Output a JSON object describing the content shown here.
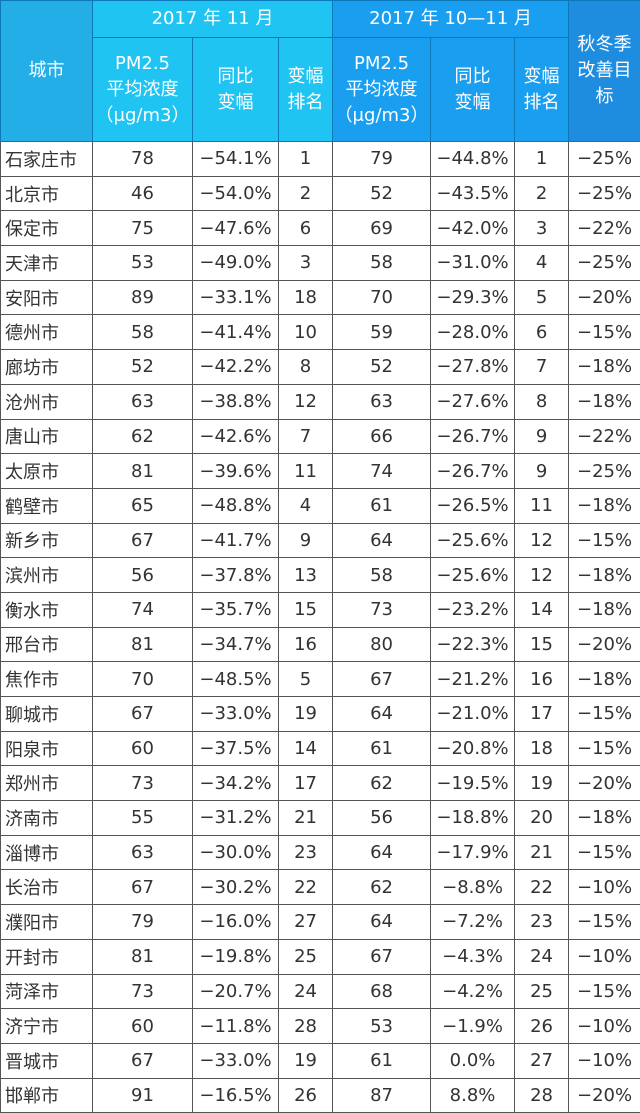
{
  "header": {
    "city": "城市",
    "group_nov": "2017 年 11 月",
    "group_octnov": "2017 年 10—11 月",
    "target": "秋冬季改善目标",
    "pm_line1": "PM2.5",
    "pm_line2": "平均浓度",
    "pm_line3": "（μg/m3）",
    "yoy": "同比变幅",
    "rank": "变幅排名"
  },
  "colors": {
    "city_header": "#24aee8",
    "nov_header": "#20c4f2",
    "octnov_header": "#1a9ff0",
    "target_header": "#1e8de0"
  },
  "rows": [
    [
      "石家庄市",
      "78",
      "−54.1%",
      "1",
      "79",
      "−44.8%",
      "1",
      "−25%"
    ],
    [
      "北京市",
      "46",
      "−54.0%",
      "2",
      "52",
      "−43.5%",
      "2",
      "−25%"
    ],
    [
      "保定市",
      "75",
      "−47.6%",
      "6",
      "69",
      "−42.0%",
      "3",
      "−22%"
    ],
    [
      "天津市",
      "53",
      "−49.0%",
      "3",
      "58",
      "−31.0%",
      "4",
      "−25%"
    ],
    [
      "安阳市",
      "89",
      "−33.1%",
      "18",
      "70",
      "−29.3%",
      "5",
      "−20%"
    ],
    [
      "德州市",
      "58",
      "−41.4%",
      "10",
      "59",
      "−28.0%",
      "6",
      "−15%"
    ],
    [
      "廊坊市",
      "52",
      "−42.2%",
      "8",
      "52",
      "−27.8%",
      "7",
      "−18%"
    ],
    [
      "沧州市",
      "63",
      "−38.8%",
      "12",
      "63",
      "−27.6%",
      "8",
      "−18%"
    ],
    [
      "唐山市",
      "62",
      "−42.6%",
      "7",
      "66",
      "−26.7%",
      "9",
      "−22%"
    ],
    [
      "太原市",
      "81",
      "−39.6%",
      "11",
      "74",
      "−26.7%",
      "9",
      "−25%"
    ],
    [
      "鹤壁市",
      "65",
      "−48.8%",
      "4",
      "61",
      "−26.5%",
      "11",
      "−18%"
    ],
    [
      "新乡市",
      "67",
      "−41.7%",
      "9",
      "64",
      "−25.6%",
      "12",
      "−15%"
    ],
    [
      "滨州市",
      "56",
      "−37.8%",
      "13",
      "58",
      "−25.6%",
      "12",
      "−18%"
    ],
    [
      "衡水市",
      "74",
      "−35.7%",
      "15",
      "73",
      "−23.2%",
      "14",
      "−18%"
    ],
    [
      "邢台市",
      "81",
      "−34.7%",
      "16",
      "80",
      "−22.3%",
      "15",
      "−20%"
    ],
    [
      "焦作市",
      "70",
      "−48.5%",
      "5",
      "67",
      "−21.2%",
      "16",
      "−18%"
    ],
    [
      "聊城市",
      "67",
      "−33.0%",
      "19",
      "64",
      "−21.0%",
      "17",
      "−15%"
    ],
    [
      "阳泉市",
      "60",
      "−37.5%",
      "14",
      "61",
      "−20.8%",
      "18",
      "−15%"
    ],
    [
      "郑州市",
      "73",
      "−34.2%",
      "17",
      "62",
      "−19.5%",
      "19",
      "−20%"
    ],
    [
      "济南市",
      "55",
      "−31.2%",
      "21",
      "56",
      "−18.8%",
      "20",
      "−18%"
    ],
    [
      "淄博市",
      "63",
      "−30.0%",
      "23",
      "64",
      "−17.9%",
      "21",
      "−15%"
    ],
    [
      "长治市",
      "67",
      "−30.2%",
      "22",
      "62",
      "−8.8%",
      "22",
      "−10%"
    ],
    [
      "濮阳市",
      "79",
      "−16.0%",
      "27",
      "64",
      "−7.2%",
      "23",
      "−15%"
    ],
    [
      "开封市",
      "81",
      "−19.8%",
      "25",
      "67",
      "−4.3%",
      "24",
      "−10%"
    ],
    [
      "菏泽市",
      "73",
      "−20.7%",
      "24",
      "68",
      "−4.2%",
      "25",
      "−15%"
    ],
    [
      "济宁市",
      "60",
      "−11.8%",
      "28",
      "53",
      "−1.9%",
      "26",
      "−10%"
    ],
    [
      "晋城市",
      "67",
      "−33.0%",
      "19",
      "61",
      "0.0%",
      "27",
      "−10%"
    ],
    [
      "邯郸市",
      "91",
      "−16.5%",
      "26",
      "87",
      "8.8%",
      "28",
      "−20%"
    ]
  ]
}
